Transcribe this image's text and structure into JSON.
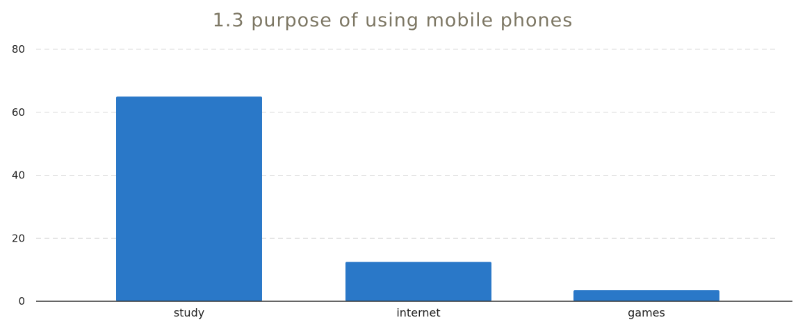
{
  "chart_data": {
    "type": "bar",
    "title": "1.3 purpose of using mobile phones",
    "categories": [
      "study",
      "internet",
      "games"
    ],
    "values": [
      65,
      12.5,
      3.5
    ],
    "xlabel": "",
    "ylabel": "",
    "ylim": [
      0,
      80
    ],
    "yticks": [
      0,
      20,
      40,
      60,
      80
    ],
    "grid": true,
    "legend": "none"
  },
  "colors": {
    "bar": "#2a78c8",
    "title": "#7d7764"
  }
}
